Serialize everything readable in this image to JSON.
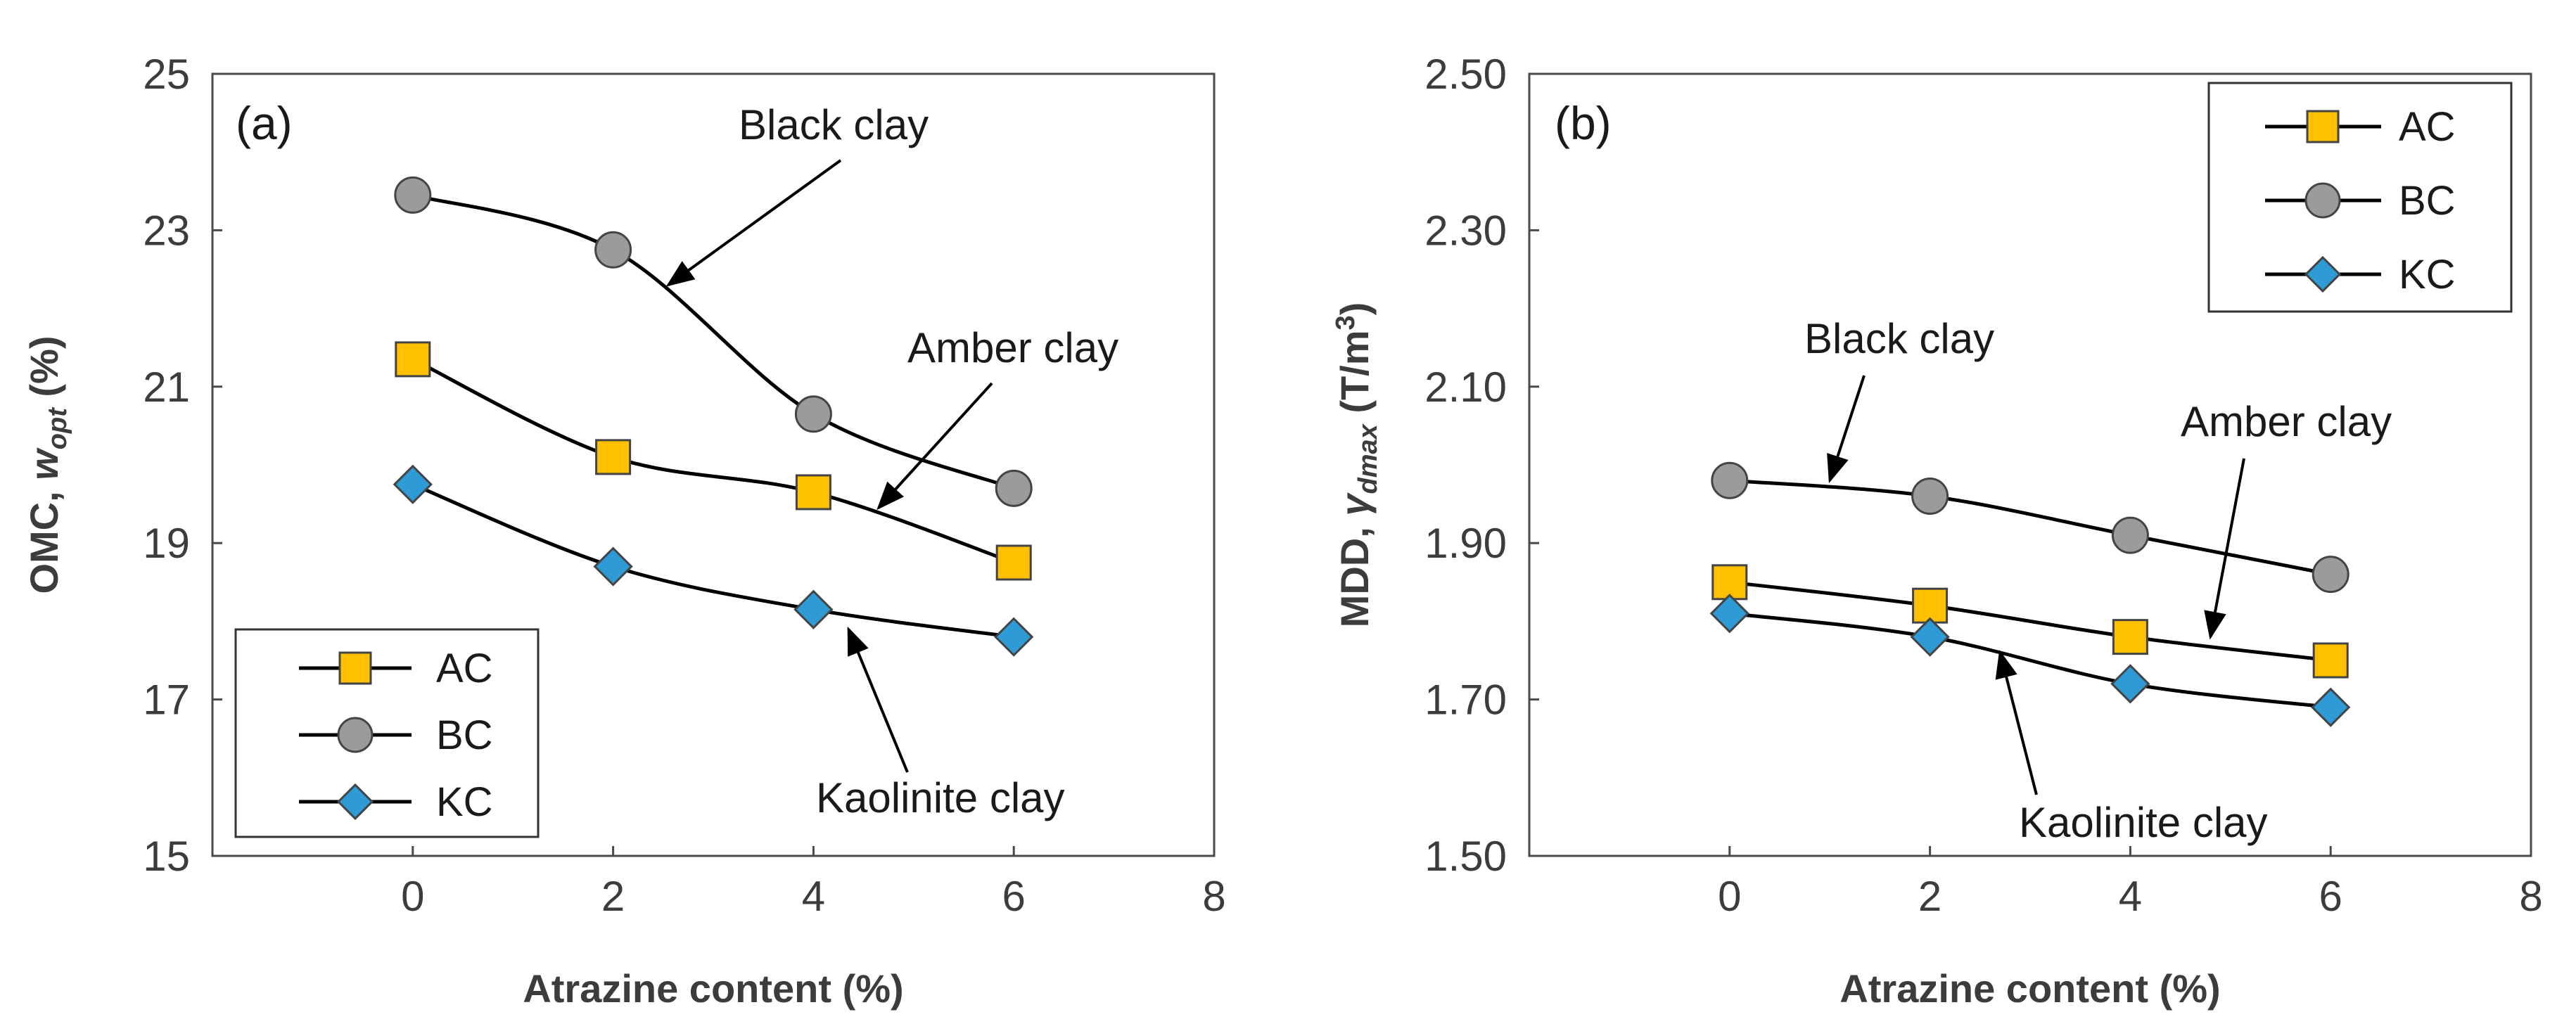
{
  "chart_data": [
    {
      "type": "line",
      "panel_label": "(a)",
      "xlabel": "Atrazine content (%)",
      "ylabel_prefix": "OMC, ",
      "ylabel_symbol": "w",
      "ylabel_subscript": "opt",
      "ylabel_suffix": " (%)",
      "xlim": [
        -2,
        8
      ],
      "ylim": [
        15,
        25
      ],
      "x_ticks": [
        0,
        2,
        4,
        6,
        8
      ],
      "x_tick_labels": [
        "0",
        "2",
        "4",
        "6",
        "8"
      ],
      "y_ticks": [
        15,
        17,
        19,
        21,
        23,
        25
      ],
      "y_tick_labels": [
        "15",
        "17",
        "19",
        "21",
        "23",
        "25"
      ],
      "legend_position": "bottom-left",
      "series": [
        {
          "name": "AC",
          "marker": "square",
          "color": "#FFC000",
          "x": [
            0,
            2,
            4,
            6
          ],
          "values": [
            21.35,
            20.1,
            19.65,
            18.75
          ]
        },
        {
          "name": "BC",
          "marker": "circle",
          "color": "#9B9B9B",
          "x": [
            0,
            2,
            4,
            6
          ],
          "values": [
            23.45,
            22.75,
            20.65,
            19.7
          ]
        },
        {
          "name": "KC",
          "marker": "diamond",
          "color": "#2E9BD6",
          "x": [
            0,
            2,
            4,
            6
          ],
          "values": [
            19.75,
            18.7,
            18.15,
            17.8
          ]
        }
      ],
      "annotations": [
        {
          "text": "Black clay",
          "target": [
            2.55,
            22.3
          ]
        },
        {
          "text": "Amber clay",
          "target": [
            4.65,
            19.45
          ]
        },
        {
          "text": "Kaolinite clay",
          "target": [
            4.35,
            17.9
          ]
        }
      ]
    },
    {
      "type": "line",
      "panel_label": "(b)",
      "xlabel": "Atrazine content (%)",
      "ylabel_prefix": "MDD, ",
      "ylabel_symbol": "γ",
      "ylabel_subscript": "dmax",
      "ylabel_suffix": " (T/m",
      "ylabel_superscript": "3",
      "ylabel_end": ")",
      "xlim": [
        -2,
        8
      ],
      "ylim": [
        1.5,
        2.5
      ],
      "x_ticks": [
        0,
        2,
        4,
        6,
        8
      ],
      "x_tick_labels": [
        "0",
        "2",
        "4",
        "6",
        "8"
      ],
      "y_ticks": [
        1.5,
        1.7,
        1.9,
        2.1,
        2.3,
        2.5
      ],
      "y_tick_labels": [
        "1.50",
        "1.70",
        "1.90",
        "2.10",
        "2.30",
        "2.50"
      ],
      "legend_position": "top-right",
      "series": [
        {
          "name": "AC",
          "marker": "square",
          "color": "#FFC000",
          "x": [
            0,
            2,
            4,
            6
          ],
          "values": [
            1.85,
            1.82,
            1.78,
            1.75
          ]
        },
        {
          "name": "BC",
          "marker": "circle",
          "color": "#9B9B9B",
          "x": [
            0,
            2,
            4,
            6
          ],
          "values": [
            1.98,
            1.96,
            1.91,
            1.86
          ]
        },
        {
          "name": "KC",
          "marker": "diamond",
          "color": "#2E9BD6",
          "x": [
            0,
            2,
            4,
            6
          ],
          "values": [
            1.81,
            1.78,
            1.72,
            1.69
          ]
        }
      ],
      "annotations": [
        {
          "text": "Black clay",
          "target": [
            1.0,
            1.98
          ]
        },
        {
          "text": "Amber clay",
          "target": [
            4.8,
            1.78
          ]
        },
        {
          "text": "Kaolinite clay",
          "target": [
            2.7,
            1.76
          ]
        }
      ]
    }
  ]
}
